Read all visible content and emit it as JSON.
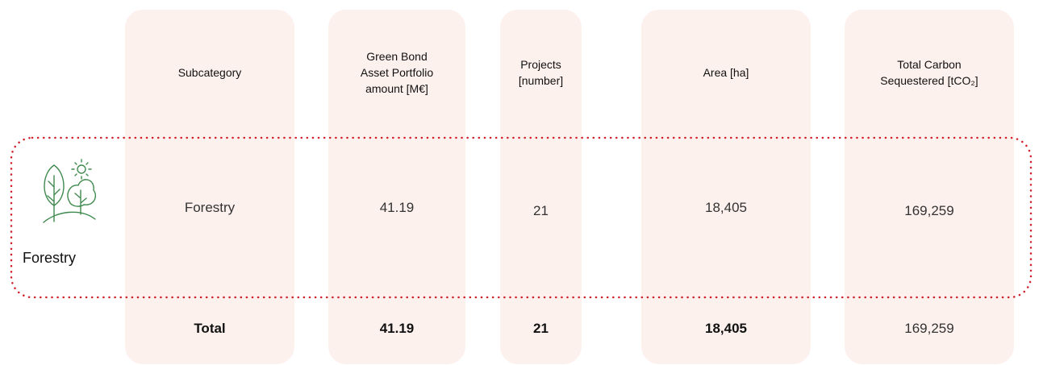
{
  "category": {
    "label": "Forestry"
  },
  "table": {
    "header": [
      "Subcategory",
      "Green Bond Asset Portfolio amount [M€]",
      "Projects [number]",
      "Area [ha]",
      "Total Carbon Sequestered [tCO₂]"
    ],
    "rows": [
      [
        "Forestry",
        "41.19",
        "21",
        "18,405",
        "169,259"
      ]
    ],
    "total": [
      "Total",
      "41.19",
      "21",
      "18,405",
      "169,259"
    ]
  }
}
